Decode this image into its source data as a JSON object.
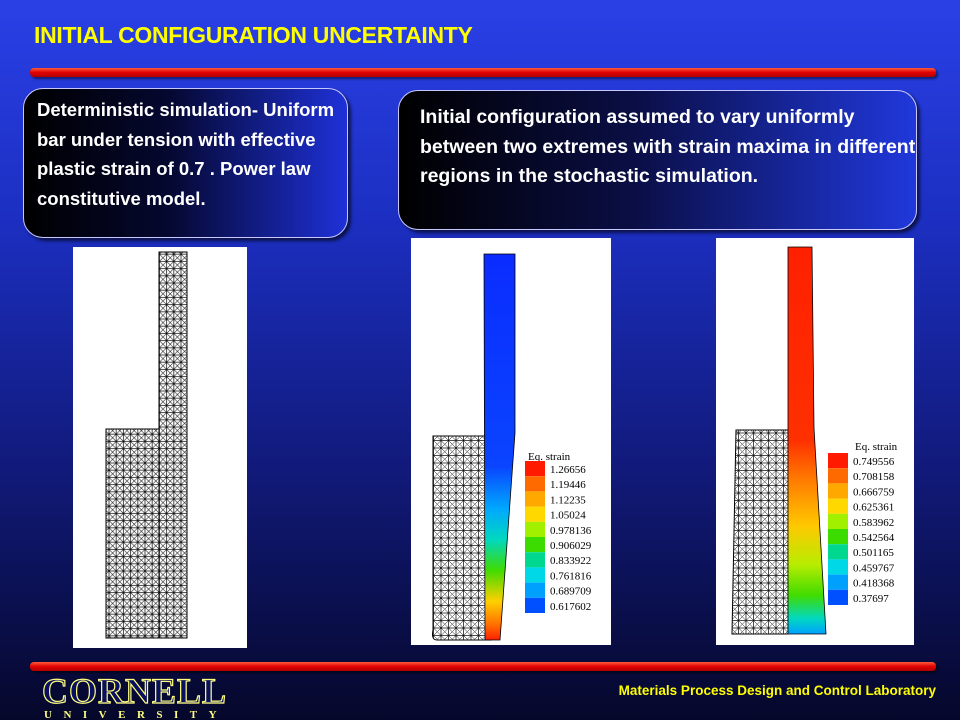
{
  "title": "INITIAL CONFIGURATION UNCERTAINTY",
  "box_left_text": "Deterministic simulation- Uniform bar under tension with effective plastic strain of 0.7 . Power law constitutive model.",
  "box_right_text": "Initial configuration assumed to vary uniformly between two extremes with strain maxima in different regions in the stochastic simulation.",
  "legend_middle": {
    "title": "Eq. strain",
    "values": [
      "1.26656",
      "1.19446",
      "1.12235",
      "1.05024",
      "0.978136",
      "0.906029",
      "0.833922",
      "0.761816",
      "0.689709",
      "0.617602"
    ],
    "colors": [
      "#ff1a00",
      "#ff6a00",
      "#ffa800",
      "#ffd800",
      "#a0f000",
      "#3cdc00",
      "#00d890",
      "#00d8e8",
      "#00a0ff",
      "#0050ff"
    ]
  },
  "legend_right": {
    "title": "Eq. strain",
    "values": [
      "0.749556",
      "0.708158",
      "0.666759",
      "0.625361",
      "0.583962",
      "0.542564",
      "0.501165",
      "0.459767",
      "0.418368",
      "0.37697"
    ],
    "colors": [
      "#ff1a00",
      "#ff6a00",
      "#ffa800",
      "#ffd800",
      "#a0f000",
      "#3cdc00",
      "#00d890",
      "#00d8e8",
      "#00a0ff",
      "#0050ff"
    ]
  },
  "footer": "Materials Process Design and Control Laboratory",
  "logo": {
    "name": "CORNELL",
    "sub": "UNIVERSITY"
  }
}
